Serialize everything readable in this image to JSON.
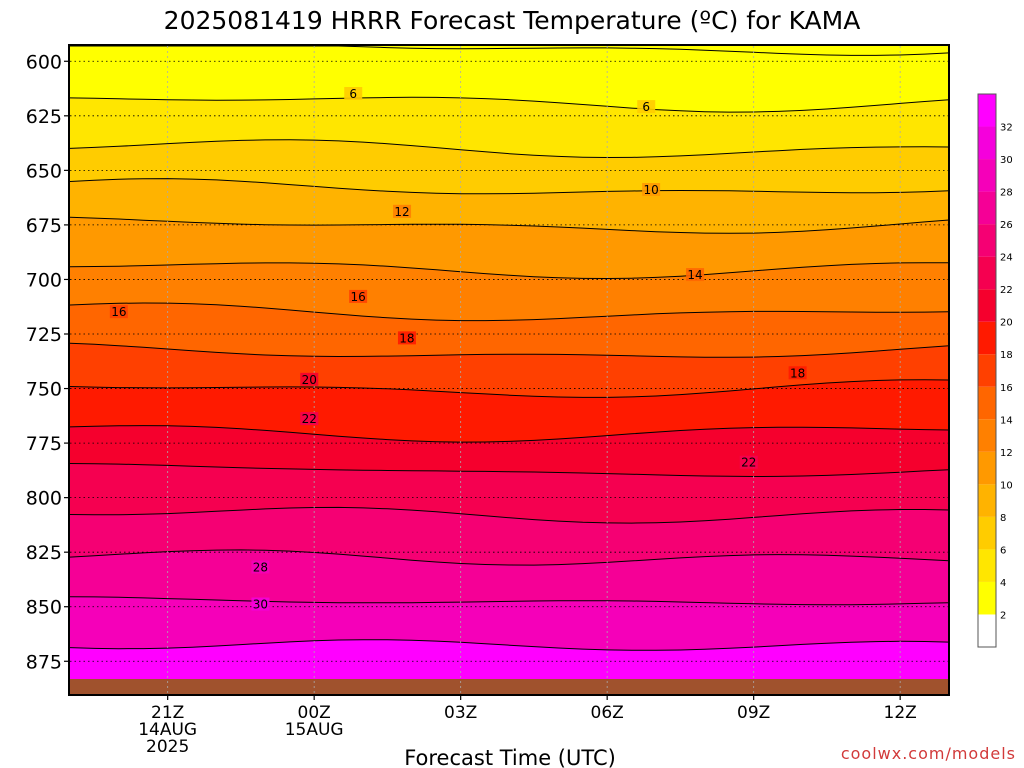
{
  "chart_data": {
    "type": "heatmap",
    "title": "2025081419 HRRR Forecast Temperature (ºC) for KAMA",
    "xlabel": "Forecast Time (UTC)",
    "ylabel": "",
    "credit": "coolwx.com/models",
    "x_ticks": [
      {
        "hours": 2,
        "line1": "21Z",
        "line2": "14AUG",
        "line3": "2025"
      },
      {
        "hours": 5,
        "line1": "00Z",
        "line2": "15AUG",
        "line3": ""
      },
      {
        "hours": 8,
        "line1": "03Z",
        "line2": "",
        "line3": ""
      },
      {
        "hours": 11,
        "line1": "06Z",
        "line2": "",
        "line3": ""
      },
      {
        "hours": 14,
        "line1": "09Z",
        "line2": "",
        "line3": ""
      },
      {
        "hours": 17,
        "line1": "12Z",
        "line2": "",
        "line3": ""
      }
    ],
    "x_range_hours": [
      0,
      18
    ],
    "y_ticks": [
      600,
      625,
      650,
      675,
      700,
      725,
      750,
      775,
      800,
      825,
      850,
      875
    ],
    "y_range_hPa": [
      593,
      890
    ],
    "y_grid": "dotted",
    "x_grid": "dotted",
    "colorbar": {
      "ticks": [
        2,
        4,
        6,
        8,
        10,
        12,
        14,
        16,
        18,
        20,
        22,
        24,
        26,
        28,
        30,
        32
      ],
      "colors": [
        "#ffffff",
        "#ffff00",
        "#ffe600",
        "#ffcc00",
        "#ffb300",
        "#ff9900",
        "#ff8000",
        "#ff6600",
        "#ff4000",
        "#ff1a00",
        "#f5002d",
        "#f50050",
        "#f50073",
        "#f50096",
        "#f500b9",
        "#f500dc",
        "#ff00ff"
      ]
    },
    "contour_levels": [
      4,
      6,
      8,
      10,
      12,
      14,
      16,
      18,
      20,
      22,
      24,
      26,
      28,
      30,
      32
    ],
    "contour_labels": [
      {
        "value": "6",
        "hours": 5.8,
        "hPa": 615
      },
      {
        "value": "6",
        "hours": 11.8,
        "hPa": 621
      },
      {
        "value": "10",
        "hours": 11.9,
        "hPa": 659
      },
      {
        "value": "12",
        "hours": 6.8,
        "hPa": 669
      },
      {
        "value": "14",
        "hours": 12.8,
        "hPa": 698
      },
      {
        "value": "16",
        "hours": 1.0,
        "hPa": 715
      },
      {
        "value": "16",
        "hours": 5.9,
        "hPa": 708
      },
      {
        "value": "18",
        "hours": 6.9,
        "hPa": 727
      },
      {
        "value": "18",
        "hours": 14.9,
        "hPa": 743
      },
      {
        "value": "20",
        "hours": 4.9,
        "hPa": 746
      },
      {
        "value": "22",
        "hours": 4.9,
        "hPa": 764
      },
      {
        "value": "22",
        "hours": 13.9,
        "hPa": 784
      },
      {
        "value": "28",
        "hours": 3.9,
        "hPa": 832
      },
      {
        "value": "30",
        "hours": 3.9,
        "hPa": 849
      }
    ],
    "temperature_profile": [
      {
        "hPa": 600,
        "tempC": 4.5
      },
      {
        "hPa": 625,
        "tempC": 6.5
      },
      {
        "hPa": 650,
        "tempC": 9
      },
      {
        "hPa": 675,
        "tempC": 12
      },
      {
        "hPa": 700,
        "tempC": 14.5
      },
      {
        "hPa": 725,
        "tempC": 17
      },
      {
        "hPa": 750,
        "tempC": 20
      },
      {
        "hPa": 775,
        "tempC": 22.5
      },
      {
        "hPa": 800,
        "tempC": 25
      },
      {
        "hPa": 825,
        "tempC": 27.5
      },
      {
        "hPa": 850,
        "tempC": 30
      },
      {
        "hPa": 875,
        "tempC": 32.5
      }
    ]
  }
}
